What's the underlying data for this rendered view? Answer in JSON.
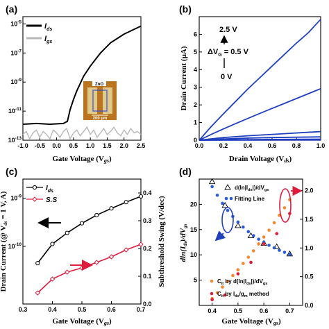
{
  "panels": {
    "a": {
      "label": "(a)"
    },
    "b": {
      "label": "(b)"
    },
    "c": {
      "label": "(c)"
    },
    "d": {
      "label": "(d)"
    }
  },
  "colors": {
    "ids": "#000000",
    "igs": "#b8b8b8",
    "blue": "#1f3fbf",
    "red": "#dd1c3c",
    "orange": "#f08a2c",
    "dotblue": "#2a5ad8",
    "inset_bg": "#b9741f",
    "inset_pad": "#e1c98a"
  },
  "chart_data": [
    {
      "panel": "a",
      "type": "line",
      "xlabel": "Gate Voltage (V",
      "xlabel_sub": "gs",
      "xlabel_end": ")",
      "xlim": [
        -1.0,
        2.5
      ],
      "ylim_log10": [
        -13,
        -4.5
      ],
      "log_y": true,
      "x_ticks": [
        "-1.0",
        "-0.5",
        "0.0",
        "0.5",
        "1.0",
        "1.5",
        "2.0",
        "2.5"
      ],
      "x_tick_values": [
        -1.0,
        -0.5,
        0.0,
        0.5,
        1.0,
        1.5,
        2.0,
        2.5
      ],
      "y_tick_exponents": [
        -13,
        -11,
        -9,
        -7,
        -5
      ],
      "legend": [
        {
          "label": "I",
          "sub": "ds",
          "color": "#000000"
        },
        {
          "label": "I",
          "sub": "gs",
          "color": "#b8b8b8"
        }
      ],
      "series": [
        {
          "name": "I_ds",
          "color": "#000000",
          "x": [
            -1.0,
            -0.6,
            -0.2,
            0.2,
            0.32,
            0.4,
            0.5,
            0.6,
            0.8,
            1.0,
            1.3,
            1.6,
            2.0,
            2.5
          ],
          "log10_y": [
            -11.9,
            -11.85,
            -11.9,
            -11.85,
            -11.7,
            -10.9,
            -10.2,
            -9.6,
            -8.6,
            -7.9,
            -7.0,
            -6.3,
            -5.7,
            -5.15
          ]
        },
        {
          "name": "I_gs",
          "color": "#b8b8b8",
          "x": [
            -1.0,
            -0.9,
            -0.8,
            -0.7,
            -0.6,
            -0.5,
            -0.4,
            -0.3,
            -0.2,
            -0.1,
            0.0,
            0.1,
            0.2,
            0.3,
            0.4,
            0.5,
            0.6,
            0.7,
            0.8,
            0.9,
            1.0,
            1.1,
            1.2,
            1.3,
            1.4,
            1.5,
            1.6,
            1.7,
            1.8,
            1.9,
            2.0,
            2.1,
            2.2,
            2.3,
            2.4,
            2.5
          ],
          "log10_y": [
            -12.6,
            -12.4,
            -12.9,
            -12.5,
            -12.3,
            -12.8,
            -12.4,
            -12.6,
            -12.9,
            -12.3,
            -12.5,
            -12.8,
            -12.4,
            -12.2,
            -12.9,
            -12.5,
            -12.3,
            -12.7,
            -12.4,
            -12.1,
            -12.6,
            -12.3,
            -12.8,
            -12.5,
            -12.2,
            -12.6,
            -12.4,
            -12.1,
            -12.5,
            -12.7,
            -12.3,
            -12.6,
            -12.2,
            -12.5,
            -12.4,
            -12.6
          ]
        }
      ],
      "inset": {
        "title": "ZnO",
        "scale": "200 μm"
      }
    },
    {
      "panel": "b",
      "type": "line",
      "xlabel": "Drain Voltage (V",
      "xlabel_sub": "ds",
      "xlabel_end": ")",
      "ylabel": "Drain Current (μA)",
      "xlim": [
        0.0,
        1.0
      ],
      "ylim": [
        0,
        7
      ],
      "x_ticks": [
        "0.0",
        "0.2",
        "0.4",
        "0.6",
        "0.8",
        "1.0"
      ],
      "x_tick_values": [
        0.0,
        0.2,
        0.4,
        0.6,
        0.8,
        1.0
      ],
      "y_ticks": [
        "0",
        "1",
        "2",
        "3",
        "4",
        "5",
        "6"
      ],
      "y_tick_values": [
        0,
        1,
        2,
        3,
        4,
        5,
        6
      ],
      "annotations": {
        "top": "2.5 V",
        "step": "ΔV",
        "step_sub": "G",
        "step_end": " = 0.5 V",
        "bottom": "0 V"
      },
      "series": [
        {
          "name": "V_G = 2.5 V",
          "color": "#1f3fbf",
          "x": [
            0,
            0.1,
            0.2,
            0.3,
            0.4,
            0.5,
            0.6,
            0.7,
            0.8,
            0.9,
            1.0
          ],
          "y": [
            0,
            0.78,
            1.5,
            2.2,
            2.9,
            3.55,
            4.2,
            4.85,
            5.5,
            6.1,
            6.85
          ]
        },
        {
          "name": "V_G = 2.0 V",
          "color": "#1f3fbf",
          "x": [
            0,
            0.1,
            0.2,
            0.3,
            0.4,
            0.5,
            0.6,
            0.7,
            0.8,
            0.9,
            1.0
          ],
          "y": [
            0,
            0.33,
            0.64,
            0.94,
            1.23,
            1.52,
            1.8,
            2.08,
            2.36,
            2.64,
            2.92
          ]
        },
        {
          "name": "V_G = 1.5 V",
          "color": "#1f3fbf",
          "x": [
            0,
            0.1,
            0.2,
            0.3,
            0.4,
            0.5,
            0.6,
            0.7,
            0.8,
            0.9,
            1.0
          ],
          "y": [
            0,
            0.08,
            0.15,
            0.2,
            0.25,
            0.29,
            0.33,
            0.37,
            0.41,
            0.45,
            0.49
          ]
        },
        {
          "name": "V_G = 1.0 V",
          "color": "#1f3fbf",
          "x": [
            0,
            0.1,
            0.2,
            0.4,
            0.6,
            0.8,
            1.0
          ],
          "y": [
            0,
            0.04,
            0.07,
            0.12,
            0.15,
            0.17,
            0.19
          ]
        },
        {
          "name": "V_G = 0.5 V",
          "color": "#1f3fbf",
          "x": [
            0,
            0.2,
            0.5,
            1.0
          ],
          "y": [
            0,
            0.02,
            0.04,
            0.06
          ]
        },
        {
          "name": "V_G = 0 V",
          "color": "#1f3fbf",
          "x": [
            0,
            0.5,
            1.0
          ],
          "y": [
            0,
            0.005,
            0.01
          ]
        }
      ]
    },
    {
      "panel": "c",
      "type": "line",
      "xlabel": "Gate Voltage (V",
      "xlabel_sub": "gs",
      "xlabel_end": ")",
      "ylabel_left": "Drain Current (@ V",
      "ylabel_left_sub": "ds",
      "ylabel_left_end": " = 1 V, A)",
      "ylabel_right": "Subthreshold Swing (V/dec)",
      "xlim": [
        0.3,
        0.7
      ],
      "ylim_left_log10": [
        -11.2,
        -8.6
      ],
      "log_y": true,
      "ylim_right": [
        0,
        0.45
      ],
      "x_ticks": [
        "0.3",
        "0.4",
        "0.5",
        "0.6",
        "0.7"
      ],
      "x_tick_values": [
        0.3,
        0.4,
        0.5,
        0.6,
        0.7
      ],
      "y_left_tick_exponents": [
        -10,
        -9
      ],
      "y_right_ticks": [
        "0.0",
        "0.1",
        "0.2",
        "0.3",
        "0.4"
      ],
      "y_right_tick_values": [
        0.0,
        0.1,
        0.2,
        0.3,
        0.4
      ],
      "legend": [
        {
          "label": "I",
          "sub": "ds",
          "color": "#000000"
        },
        {
          "label": "S.S",
          "color": "#dd1c3c"
        }
      ],
      "series": [
        {
          "name": "I_ds",
          "axis": "left",
          "color": "#000000",
          "x": [
            0.35,
            0.4,
            0.45,
            0.5,
            0.55,
            0.6,
            0.65,
            0.7
          ],
          "log10_y": [
            -10.35,
            -9.95,
            -9.72,
            -9.52,
            -9.35,
            -9.21,
            -9.08,
            -8.96
          ]
        },
        {
          "name": "S.S",
          "axis": "right",
          "color": "#dd1c3c",
          "x": [
            0.35,
            0.4,
            0.45,
            0.5,
            0.55,
            0.6,
            0.65,
            0.7
          ],
          "y": [
            0.04,
            0.09,
            0.115,
            0.13,
            0.15,
            0.17,
            0.195,
            0.215
          ]
        }
      ]
    },
    {
      "panel": "d",
      "type": "scatter",
      "xlabel": "Gate Voltage (V",
      "xlabel_sub": "gs",
      "xlabel_end": ")",
      "ylabel_left": "dln(I",
      "ylabel_left_sub": "ds",
      "ylabel_left_end": ")/dV",
      "ylabel_left_sub2": "gs",
      "xlim": [
        0.35,
        0.75
      ],
      "ylim_left": [
        0,
        25
      ],
      "ylim_right": [
        0,
        2.2
      ],
      "x_ticks": [
        "0.4",
        "0.5",
        "0.6",
        "0.7"
      ],
      "x_tick_values": [
        0.4,
        0.5,
        0.6,
        0.7
      ],
      "y_left_ticks": [
        "20",
        "15",
        "10",
        "5"
      ],
      "y_left_tick_values": [
        20,
        15,
        10,
        5
      ],
      "y_right_ticks": [
        "2.0",
        "1.5",
        "1.0",
        "0.5",
        "0.0"
      ],
      "y_right_tick_values": [
        2.0,
        1.5,
        1.0,
        0.5,
        0.0
      ],
      "legend": [
        {
          "label": "d(ln|I",
          "sub": "ds",
          "label_end": "|)/dV",
          "sub2": "gs",
          "marker": "triangle"
        },
        {
          "label": "Fitting Line",
          "marker": "dot-blue"
        },
        {
          "label": "C",
          "sub": "it",
          "label_end": " by d(ln|I",
          "sub2": "ds",
          "label_end2": "|)/dV",
          "sub3": "gs",
          "marker": "dot-orange"
        },
        {
          "label": "C",
          "sub": "it",
          "label_end": " by I",
          "sub2": "ds",
          "label_end2": "/g",
          "sub3": "m",
          "label_end3": " method",
          "marker": "dot-red"
        }
      ],
      "series": [
        {
          "name": "d(ln|Ids|)/dVgs",
          "axis": "left",
          "marker": "triangle",
          "x": [
            0.4,
            0.45,
            0.5,
            0.55,
            0.6,
            0.65,
            0.7
          ],
          "y": [
            24.5,
            19.8,
            15.8,
            13.8,
            12.3,
            11.6,
            10.2
          ]
        },
        {
          "name": "Fitting Line",
          "axis": "left",
          "marker": "dot",
          "color": "#2a5ad8",
          "x": [
            0.4,
            0.42,
            0.44,
            0.46,
            0.48,
            0.5,
            0.52,
            0.54,
            0.56,
            0.58,
            0.6,
            0.62,
            0.64,
            0.66,
            0.68,
            0.7
          ],
          "y": [
            23.5,
            21.8,
            20.2,
            18.8,
            17.6,
            16.5,
            15.5,
            14.6,
            13.8,
            13.1,
            12.5,
            11.9,
            11.4,
            10.9,
            10.5,
            10.1
          ]
        },
        {
          "name": "C_it by d(ln|Ids|)/dVgs",
          "axis": "right",
          "marker": "dot",
          "color": "#f08a2c",
          "x": [
            0.4,
            0.42,
            0.44,
            0.46,
            0.48,
            0.5,
            0.52,
            0.54,
            0.56,
            0.58,
            0.6,
            0.62,
            0.64,
            0.66,
            0.68,
            0.7
          ],
          "y": [
            0.12,
            0.22,
            0.32,
            0.42,
            0.52,
            0.62,
            0.73,
            0.84,
            0.95,
            1.07,
            1.19,
            1.31,
            1.44,
            1.57,
            1.7,
            1.84
          ]
        },
        {
          "name": "C_it by Ids/gm method",
          "axis": "right",
          "marker": "dot",
          "color": "#dd1c3c",
          "x": [
            0.4,
            0.45,
            0.5,
            0.55,
            0.6,
            0.65,
            0.7
          ],
          "y": [
            0.1,
            0.18,
            0.55,
            0.75,
            1.07,
            1.25,
            1.6
          ]
        }
      ]
    }
  ]
}
